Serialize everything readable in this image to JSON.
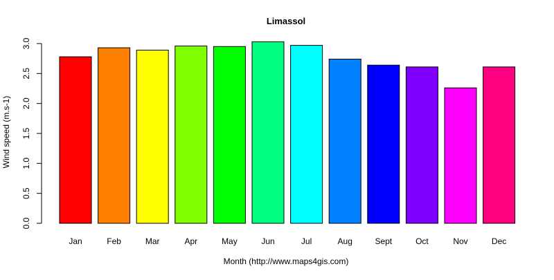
{
  "chart_data": {
    "type": "bar",
    "title": "Limassol",
    "xlabel": "Month (http://www.maps4gis.com)",
    "ylabel": "Wind speed (m.s-1)",
    "categories": [
      "Jan",
      "Feb",
      "Mar",
      "Apr",
      "May",
      "Jun",
      "Jul",
      "Aug",
      "Sept",
      "Oct",
      "Nov",
      "Dec"
    ],
    "values": [
      2.78,
      2.93,
      2.89,
      2.96,
      2.95,
      3.03,
      2.97,
      2.74,
      2.64,
      2.61,
      2.26,
      2.61
    ],
    "colors": [
      "#ff0000",
      "#ff8000",
      "#ffff00",
      "#80ff00",
      "#00ff00",
      "#00ff80",
      "#00ffff",
      "#0080ff",
      "#0000ff",
      "#8000ff",
      "#ff00ff",
      "#ff0080"
    ],
    "yticks": [
      "0.0",
      "0.5",
      "1.0",
      "1.5",
      "2.0",
      "2.5",
      "3.0"
    ],
    "ylim": [
      0,
      3.0
    ],
    "grid": false,
    "legend": "none"
  }
}
